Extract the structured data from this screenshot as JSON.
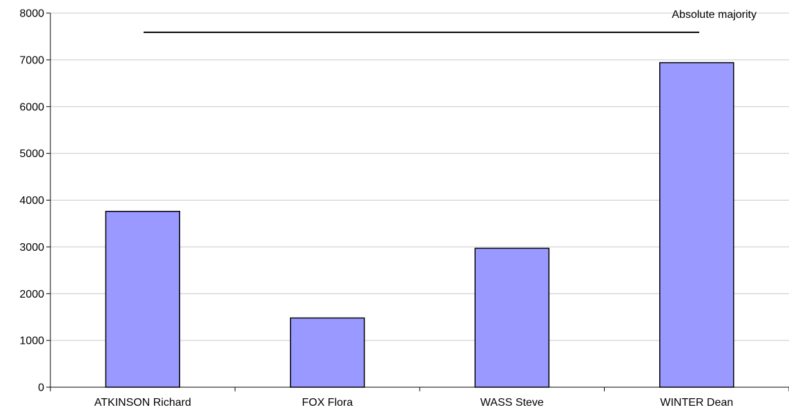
{
  "chart_data": {
    "type": "bar",
    "title": "",
    "xlabel": "",
    "ylabel": "",
    "categories": [
      "ATKINSON Richard",
      "FOX Flora",
      "WASS Steve",
      "WINTER Dean"
    ],
    "values": [
      3760,
      1480,
      2970,
      6940
    ],
    "ylim": [
      0,
      8000
    ],
    "yticks": [
      0,
      1000,
      2000,
      3000,
      4000,
      5000,
      6000,
      7000,
      8000
    ],
    "grid": true,
    "legend": "none",
    "bar_color": "#9999ff",
    "bar_edge_color": "#000000",
    "reference_line": {
      "label": "Absolute majority",
      "value": 7590
    }
  }
}
